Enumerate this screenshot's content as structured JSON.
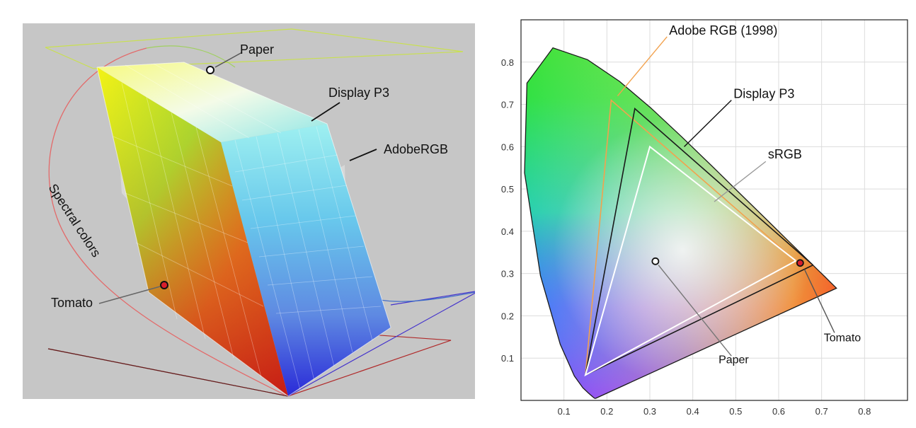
{
  "left_figure": {
    "labels": {
      "paper": "Paper",
      "display_p3": "Display P3",
      "adobergb": "AdobeRGB",
      "spectral_colors": "Spectral colors",
      "tomato": "Tomato"
    }
  },
  "right_figure": {
    "labels": {
      "adobe_rgb": "Adobe RGB (1998)",
      "display_p3": "Display P3",
      "srgb": "sRGB",
      "tomato": "Tomato",
      "paper": "Paper"
    }
  },
  "chart_data": {
    "type": "scatter",
    "title": "",
    "xlabel": "",
    "ylabel": "",
    "xlim": [
      0,
      0.9
    ],
    "ylim": [
      0,
      0.9
    ],
    "grid": true,
    "x_ticks": [
      "0.1",
      "0.2",
      "0.3",
      "0.4",
      "0.5",
      "0.6",
      "0.7",
      "0.8"
    ],
    "y_ticks": [
      "0.1",
      "0.2",
      "0.3",
      "0.4",
      "0.5",
      "0.6",
      "0.7",
      "0.8"
    ],
    "series": [
      {
        "name": "Adobe RGB (1998)",
        "color": "#f2a24e",
        "points": [
          [
            0.64,
            0.33
          ],
          [
            0.21,
            0.71
          ],
          [
            0.15,
            0.06
          ],
          [
            0.64,
            0.33
          ]
        ]
      },
      {
        "name": "Display P3",
        "color": "#1a1a1a",
        "points": [
          [
            0.68,
            0.32
          ],
          [
            0.265,
            0.69
          ],
          [
            0.15,
            0.06
          ],
          [
            0.68,
            0.32
          ]
        ]
      },
      {
        "name": "sRGB",
        "color": "#ffffff",
        "points": [
          [
            0.64,
            0.33
          ],
          [
            0.3,
            0.6
          ],
          [
            0.15,
            0.06
          ],
          [
            0.64,
            0.33
          ]
        ]
      },
      {
        "name": "Tomato",
        "color": "#d81e2c",
        "points": [
          [
            0.65,
            0.325
          ]
        ]
      },
      {
        "name": "Paper",
        "color": "#ffffff",
        "points": [
          [
            0.313,
            0.329
          ]
        ]
      }
    ],
    "locus": [
      [
        0.1741,
        0.005
      ],
      [
        0.1738,
        0.0049
      ],
      [
        0.1736,
        0.0049
      ],
      [
        0.1733,
        0.0048
      ],
      [
        0.173,
        0.0048
      ],
      [
        0.1726,
        0.0048
      ],
      [
        0.1714,
        0.0051
      ],
      [
        0.1689,
        0.0069
      ],
      [
        0.1644,
        0.0109
      ],
      [
        0.1566,
        0.0177
      ],
      [
        0.144,
        0.0297
      ],
      [
        0.1241,
        0.0578
      ],
      [
        0.0913,
        0.1327
      ],
      [
        0.0454,
        0.295
      ],
      [
        0.0082,
        0.5384
      ],
      [
        0.0139,
        0.7502
      ],
      [
        0.0743,
        0.8338
      ],
      [
        0.1547,
        0.8059
      ],
      [
        0.2296,
        0.7543
      ],
      [
        0.3016,
        0.6923
      ],
      [
        0.3731,
        0.6245
      ],
      [
        0.4441,
        0.5547
      ],
      [
        0.5125,
        0.4866
      ],
      [
        0.5752,
        0.4242
      ],
      [
        0.627,
        0.3725
      ],
      [
        0.6658,
        0.334
      ],
      [
        0.6915,
        0.3083
      ],
      [
        0.7079,
        0.292
      ],
      [
        0.719,
        0.2809
      ],
      [
        0.726,
        0.274
      ],
      [
        0.7347,
        0.2653
      ]
    ]
  }
}
